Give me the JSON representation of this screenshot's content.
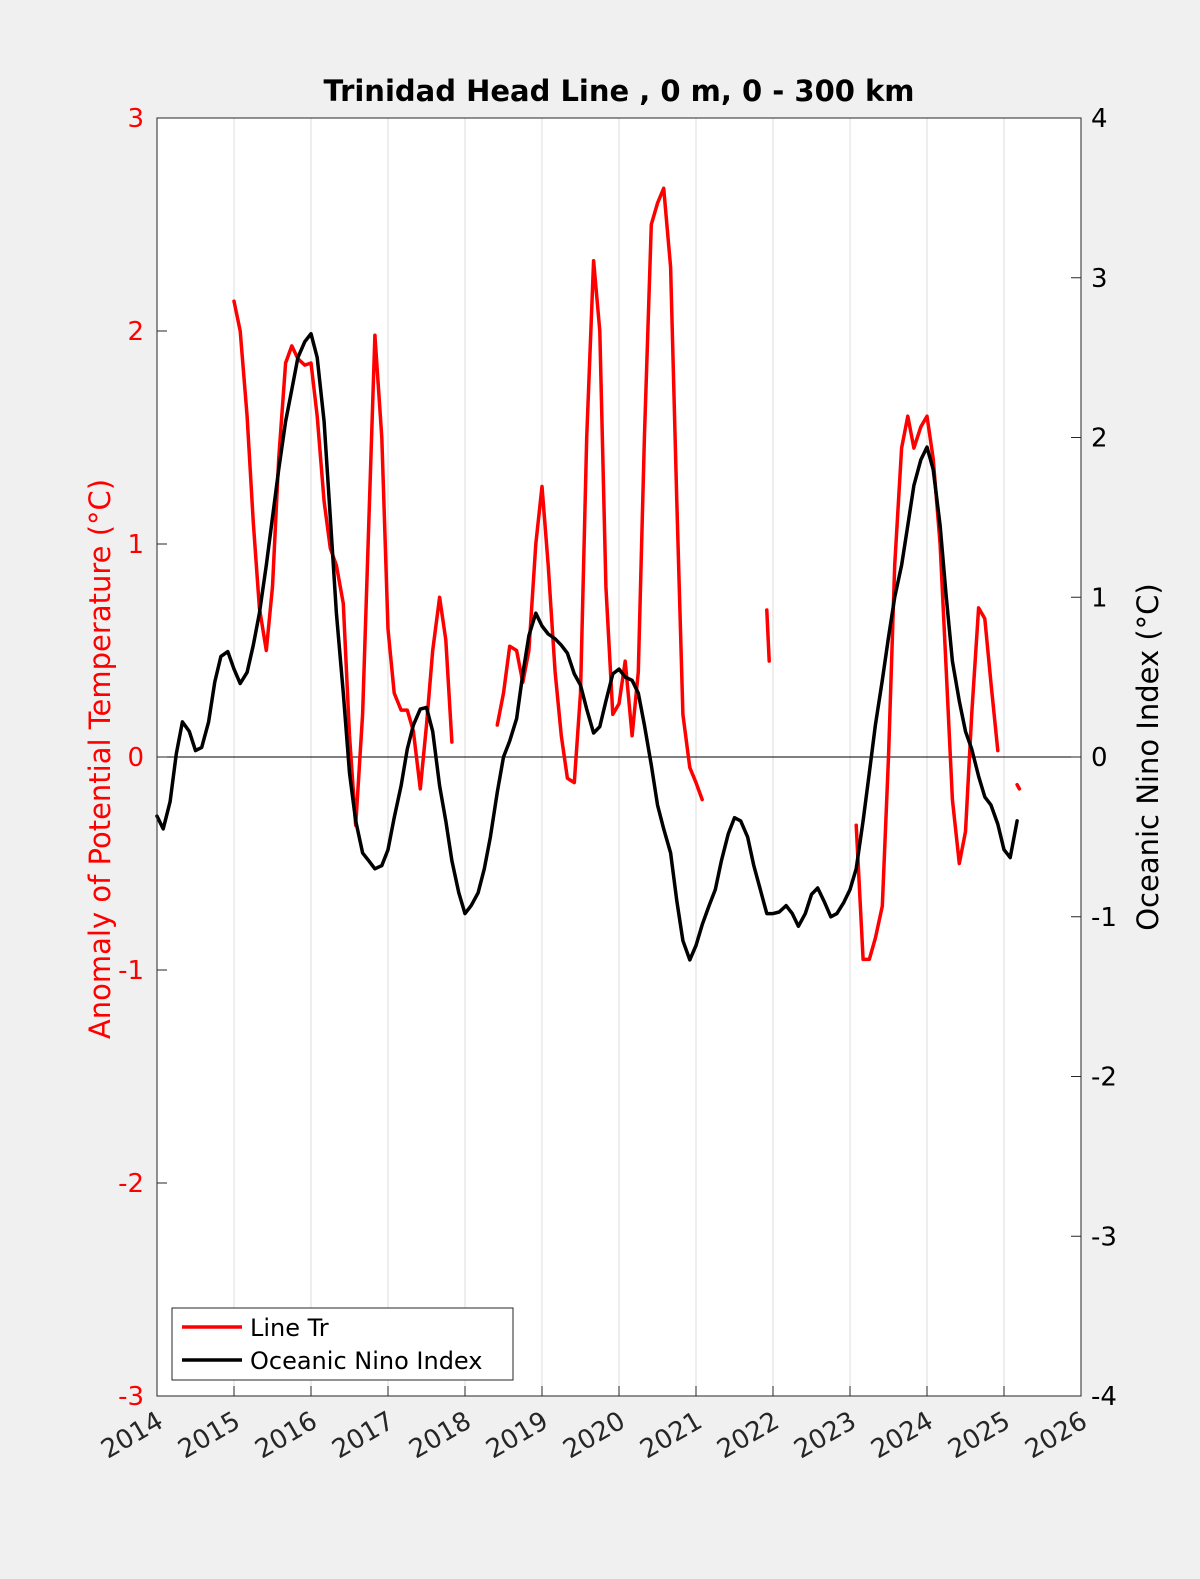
{
  "chart_data": {
    "type": "line",
    "title": "Trinidad Head Line , 0 m, 0 - 300 km",
    "xlim": [
      2014,
      2026
    ],
    "x_ticks": [
      "2014",
      "2015",
      "2016",
      "2017",
      "2018",
      "2019",
      "2020",
      "2021",
      "2022",
      "2023",
      "2024",
      "2025",
      "2026"
    ],
    "left_axis": {
      "label": "Anomaly of Potential Temperature (°C)",
      "ylim": [
        -3,
        3
      ],
      "ticks": [
        "-3",
        "-2",
        "-1",
        "0",
        "1",
        "2",
        "3"
      ],
      "color": "#ff0000"
    },
    "right_axis": {
      "label": "Oceanic Nino Index (°C)",
      "ylim": [
        -4,
        4
      ],
      "ticks": [
        "-4",
        "-3",
        "-2",
        "-1",
        "0",
        "1",
        "2",
        "3",
        "4"
      ],
      "color": "#000000"
    },
    "grid": "vertical",
    "legend_placement": "bottom-left",
    "series": [
      {
        "name": "Line Tr",
        "axis": "left",
        "color": "#ff0000",
        "segments": [
          [
            [
              2015.0,
              2.14
            ],
            [
              2015.08,
              2.0
            ],
            [
              2015.17,
              1.6
            ],
            [
              2015.25,
              1.1
            ],
            [
              2015.33,
              0.7
            ],
            [
              2015.42,
              0.5
            ],
            [
              2015.5,
              0.8
            ],
            [
              2015.58,
              1.4
            ],
            [
              2015.67,
              1.85
            ],
            [
              2015.75,
              1.93
            ],
            [
              2015.83,
              1.87
            ],
            [
              2015.92,
              1.84
            ],
            [
              2016.0,
              1.85
            ],
            [
              2016.08,
              1.6
            ],
            [
              2016.17,
              1.2
            ],
            [
              2016.25,
              0.98
            ],
            [
              2016.33,
              0.9
            ],
            [
              2016.42,
              0.72
            ],
            [
              2016.5,
              0.1
            ],
            [
              2016.58,
              -0.32
            ],
            [
              2016.67,
              0.2
            ],
            [
              2016.75,
              1.1
            ],
            [
              2016.83,
              1.98
            ],
            [
              2016.92,
              1.5
            ],
            [
              2017.0,
              0.6
            ],
            [
              2017.08,
              0.3
            ],
            [
              2017.17,
              0.22
            ],
            [
              2017.25,
              0.22
            ],
            [
              2017.33,
              0.12
            ],
            [
              2017.42,
              -0.15
            ],
            [
              2017.5,
              0.15
            ],
            [
              2017.58,
              0.5
            ],
            [
              2017.67,
              0.75
            ],
            [
              2017.75,
              0.55
            ],
            [
              2017.83,
              0.07
            ]
          ],
          [
            [
              2018.42,
              0.15
            ],
            [
              2018.5,
              0.3
            ],
            [
              2018.58,
              0.52
            ],
            [
              2018.67,
              0.5
            ],
            [
              2018.75,
              0.35
            ],
            [
              2018.83,
              0.5
            ],
            [
              2018.92,
              1.0
            ],
            [
              2019.0,
              1.27
            ],
            [
              2019.08,
              0.9
            ],
            [
              2019.17,
              0.4
            ],
            [
              2019.25,
              0.1
            ],
            [
              2019.33,
              -0.1
            ],
            [
              2019.42,
              -0.12
            ],
            [
              2019.5,
              0.3
            ],
            [
              2019.58,
              1.5
            ],
            [
              2019.67,
              2.33
            ],
            [
              2019.75,
              2.0
            ],
            [
              2019.83,
              0.8
            ],
            [
              2019.92,
              0.2
            ],
            [
              2020.0,
              0.25
            ],
            [
              2020.08,
              0.45
            ],
            [
              2020.17,
              0.1
            ],
            [
              2020.25,
              0.4
            ],
            [
              2020.33,
              1.5
            ],
            [
              2020.42,
              2.5
            ],
            [
              2020.5,
              2.6
            ],
            [
              2020.58,
              2.67
            ],
            [
              2020.67,
              2.3
            ],
            [
              2020.75,
              1.2
            ],
            [
              2020.83,
              0.2
            ],
            [
              2020.92,
              -0.05
            ],
            [
              2021.0,
              -0.12
            ],
            [
              2021.08,
              -0.2
            ]
          ],
          [
            [
              2021.92,
              0.69
            ],
            [
              2021.95,
              0.45
            ]
          ],
          [
            [
              2023.08,
              -0.32
            ],
            [
              2023.17,
              -0.95
            ],
            [
              2023.25,
              -0.95
            ],
            [
              2023.33,
              -0.85
            ],
            [
              2023.42,
              -0.7
            ],
            [
              2023.5,
              0.0
            ],
            [
              2023.58,
              0.9
            ],
            [
              2023.67,
              1.45
            ],
            [
              2023.75,
              1.6
            ],
            [
              2023.83,
              1.45
            ],
            [
              2023.92,
              1.55
            ],
            [
              2024.0,
              1.6
            ],
            [
              2024.08,
              1.4
            ],
            [
              2024.17,
              1.0
            ],
            [
              2024.25,
              0.4
            ],
            [
              2024.33,
              -0.2
            ],
            [
              2024.42,
              -0.5
            ],
            [
              2024.5,
              -0.35
            ],
            [
              2024.58,
              0.2
            ],
            [
              2024.67,
              0.7
            ],
            [
              2024.75,
              0.65
            ],
            [
              2024.83,
              0.35
            ],
            [
              2024.92,
              0.03
            ]
          ],
          [
            [
              2025.17,
              -0.13
            ],
            [
              2025.2,
              -0.15
            ]
          ]
        ]
      },
      {
        "name": "Oceanic Nino Index",
        "axis": "right",
        "color": "#000000",
        "segments": [
          [
            [
              2014.0,
              -0.37
            ],
            [
              2014.08,
              -0.45
            ],
            [
              2014.17,
              -0.28
            ],
            [
              2014.25,
              0.02
            ],
            [
              2014.33,
              0.22
            ],
            [
              2014.42,
              0.16
            ],
            [
              2014.5,
              0.04
            ],
            [
              2014.58,
              0.06
            ],
            [
              2014.67,
              0.22
            ],
            [
              2014.75,
              0.47
            ],
            [
              2014.83,
              0.63
            ],
            [
              2014.92,
              0.66
            ],
            [
              2015.0,
              0.55
            ],
            [
              2015.08,
              0.46
            ],
            [
              2015.17,
              0.53
            ],
            [
              2015.25,
              0.7
            ],
            [
              2015.33,
              0.9
            ],
            [
              2015.42,
              1.2
            ],
            [
              2015.5,
              1.5
            ],
            [
              2015.58,
              1.8
            ],
            [
              2015.67,
              2.1
            ],
            [
              2015.75,
              2.3
            ],
            [
              2015.83,
              2.5
            ],
            [
              2015.92,
              2.6
            ],
            [
              2016.0,
              2.65
            ],
            [
              2016.08,
              2.5
            ],
            [
              2016.17,
              2.1
            ],
            [
              2016.25,
              1.5
            ],
            [
              2016.33,
              0.9
            ],
            [
              2016.42,
              0.4
            ],
            [
              2016.5,
              -0.1
            ],
            [
              2016.58,
              -0.4
            ],
            [
              2016.67,
              -0.6
            ],
            [
              2016.75,
              -0.65
            ],
            [
              2016.83,
              -0.7
            ],
            [
              2016.92,
              -0.68
            ],
            [
              2017.0,
              -0.58
            ],
            [
              2017.08,
              -0.38
            ],
            [
              2017.17,
              -0.18
            ],
            [
              2017.25,
              0.05
            ],
            [
              2017.33,
              0.2
            ],
            [
              2017.42,
              0.3
            ],
            [
              2017.5,
              0.31
            ],
            [
              2017.58,
              0.16
            ],
            [
              2017.67,
              -0.18
            ],
            [
              2017.75,
              -0.4
            ],
            [
              2017.83,
              -0.65
            ],
            [
              2017.92,
              -0.85
            ],
            [
              2018.0,
              -0.98
            ],
            [
              2018.08,
              -0.93
            ],
            [
              2018.17,
              -0.85
            ],
            [
              2018.25,
              -0.7
            ],
            [
              2018.33,
              -0.5
            ],
            [
              2018.42,
              -0.22
            ],
            [
              2018.5,
              0.0
            ],
            [
              2018.58,
              0.1
            ],
            [
              2018.67,
              0.24
            ],
            [
              2018.75,
              0.52
            ],
            [
              2018.83,
              0.76
            ],
            [
              2018.92,
              0.9
            ],
            [
              2019.0,
              0.82
            ],
            [
              2019.08,
              0.77
            ],
            [
              2019.17,
              0.74
            ],
            [
              2019.25,
              0.7
            ],
            [
              2019.33,
              0.65
            ],
            [
              2019.42,
              0.52
            ],
            [
              2019.5,
              0.45
            ],
            [
              2019.58,
              0.3
            ],
            [
              2019.67,
              0.15
            ],
            [
              2019.75,
              0.19
            ],
            [
              2019.83,
              0.35
            ],
            [
              2019.92,
              0.52
            ],
            [
              2020.0,
              0.55
            ],
            [
              2020.08,
              0.5
            ],
            [
              2020.17,
              0.48
            ],
            [
              2020.25,
              0.4
            ],
            [
              2020.33,
              0.2
            ],
            [
              2020.42,
              -0.05
            ],
            [
              2020.5,
              -0.3
            ],
            [
              2020.58,
              -0.45
            ],
            [
              2020.67,
              -0.6
            ],
            [
              2020.75,
              -0.9
            ],
            [
              2020.83,
              -1.15
            ],
            [
              2020.92,
              -1.27
            ],
            [
              2021.0,
              -1.18
            ],
            [
              2021.08,
              -1.05
            ],
            [
              2021.17,
              -0.93
            ],
            [
              2021.25,
              -0.83
            ],
            [
              2021.33,
              -0.65
            ],
            [
              2021.42,
              -0.48
            ],
            [
              2021.5,
              -0.38
            ],
            [
              2021.58,
              -0.4
            ],
            [
              2021.67,
              -0.5
            ],
            [
              2021.75,
              -0.68
            ],
            [
              2021.83,
              -0.82
            ],
            [
              2021.92,
              -0.98
            ],
            [
              2022.0,
              -0.98
            ],
            [
              2022.08,
              -0.97
            ],
            [
              2022.17,
              -0.93
            ],
            [
              2022.25,
              -0.98
            ],
            [
              2022.33,
              -1.06
            ],
            [
              2022.42,
              -0.98
            ],
            [
              2022.5,
              -0.86
            ],
            [
              2022.58,
              -0.82
            ],
            [
              2022.67,
              -0.91
            ],
            [
              2022.75,
              -1.0
            ],
            [
              2022.83,
              -0.98
            ],
            [
              2022.92,
              -0.91
            ],
            [
              2023.0,
              -0.83
            ],
            [
              2023.08,
              -0.7
            ],
            [
              2023.17,
              -0.4
            ],
            [
              2023.25,
              -0.1
            ],
            [
              2023.33,
              0.2
            ],
            [
              2023.42,
              0.48
            ],
            [
              2023.5,
              0.75
            ],
            [
              2023.58,
              1.0
            ],
            [
              2023.67,
              1.2
            ],
            [
              2023.75,
              1.45
            ],
            [
              2023.83,
              1.7
            ],
            [
              2023.92,
              1.86
            ],
            [
              2024.0,
              1.94
            ],
            [
              2024.08,
              1.8
            ],
            [
              2024.17,
              1.45
            ],
            [
              2024.25,
              1.0
            ],
            [
              2024.33,
              0.6
            ],
            [
              2024.42,
              0.35
            ],
            [
              2024.5,
              0.16
            ],
            [
              2024.58,
              0.05
            ],
            [
              2024.67,
              -0.12
            ],
            [
              2024.75,
              -0.25
            ],
            [
              2024.83,
              -0.3
            ],
            [
              2024.92,
              -0.42
            ],
            [
              2025.0,
              -0.58
            ],
            [
              2025.08,
              -0.63
            ],
            [
              2025.17,
              -0.4
            ]
          ]
        ]
      }
    ]
  }
}
